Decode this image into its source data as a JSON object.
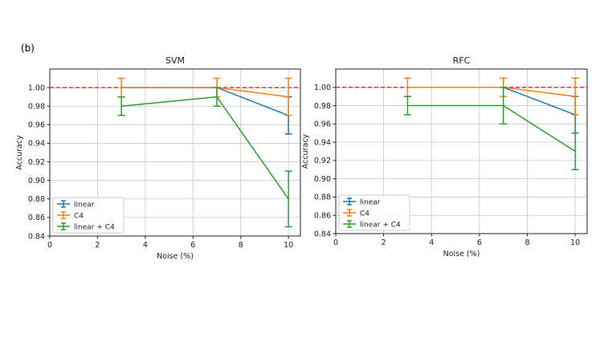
{
  "figure_label": "(b)",
  "colors": {
    "linear": "#1f77b4",
    "C4": "#ff7f0e",
    "linear_C4": "#2ca02c",
    "reference": "#d62728"
  },
  "chart_data": [
    {
      "type": "line",
      "title": "SVM",
      "xlabel": "Noise (%)",
      "ylabel": "Accuracy",
      "xlim": [
        0,
        10.5
      ],
      "ylim": [
        0.84,
        1.02
      ],
      "xticks": [
        0,
        2,
        4,
        6,
        8,
        10
      ],
      "xtick_labels": [
        "0",
        "2",
        "4",
        "6",
        "8",
        "10"
      ],
      "yticks": [
        0.84,
        0.86,
        0.88,
        0.9,
        0.92,
        0.94,
        0.96,
        0.98,
        1.0
      ],
      "ytick_labels": [
        "0.84",
        "0.86",
        "0.88",
        "0.90",
        "0.92",
        "0.94",
        "0.96",
        "0.98",
        "1.00"
      ],
      "grid": true,
      "reference_line": 1.0,
      "legend_position": "lower-left",
      "x": [
        3,
        7,
        10
      ],
      "series": [
        {
          "name": "linear",
          "color_key": "linear",
          "values": [
            1.0,
            1.0,
            0.97
          ],
          "err": [
            0.0,
            0.0,
            0.02
          ]
        },
        {
          "name": "C4",
          "color_key": "C4",
          "values": [
            1.0,
            1.0,
            0.99
          ],
          "err": [
            0.01,
            0.01,
            0.02
          ]
        },
        {
          "name": "linear + C4",
          "color_key": "linear_C4",
          "values": [
            0.98,
            0.99,
            0.88
          ],
          "err": [
            0.01,
            0.01,
            0.03
          ]
        }
      ]
    },
    {
      "type": "line",
      "title": "RFC",
      "xlabel": "Noise (%)",
      "ylabel": "Accuracy",
      "xlim": [
        0,
        10.5
      ],
      "ylim": [
        0.84,
        1.02
      ],
      "xticks": [
        0,
        2,
        4,
        6,
        8,
        10
      ],
      "xtick_labels": [
        "0",
        "2",
        "4",
        "6",
        "8",
        "10"
      ],
      "yticks": [
        0.84,
        0.86,
        0.88,
        0.9,
        0.92,
        0.94,
        0.96,
        0.98,
        1.0
      ],
      "ytick_labels": [
        "0.84",
        "0.86",
        "0.88",
        "0.90",
        "0.92",
        "0.94",
        "0.96",
        "0.98",
        "1.00"
      ],
      "grid": true,
      "reference_line": 1.0,
      "legend_position": "lower-left",
      "x": [
        3,
        7,
        10
      ],
      "series": [
        {
          "name": "linear",
          "color_key": "linear",
          "values": [
            1.0,
            1.0,
            0.97
          ],
          "err": [
            0.0,
            0.0,
            0.02
          ]
        },
        {
          "name": "C4",
          "color_key": "C4",
          "values": [
            1.0,
            1.0,
            0.99
          ],
          "err": [
            0.01,
            0.01,
            0.02
          ]
        },
        {
          "name": "linear + C4",
          "color_key": "linear_C4",
          "values": [
            0.98,
            0.98,
            0.93
          ],
          "err": [
            0.01,
            0.02,
            0.02
          ]
        }
      ]
    }
  ]
}
